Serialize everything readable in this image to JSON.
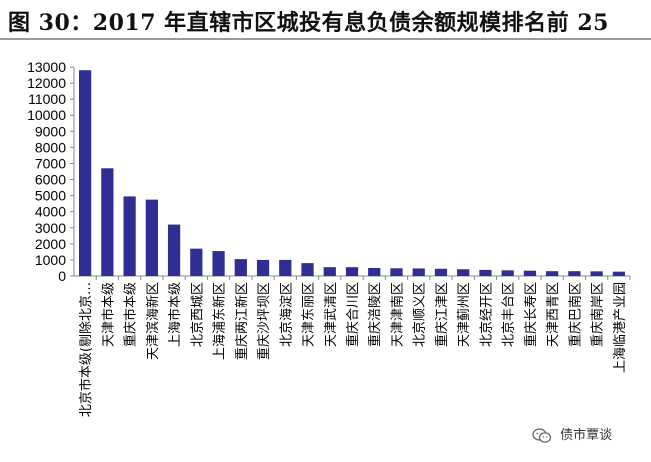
{
  "header": {
    "title": "图 30：2017 年直辖市区城投有息负债余额规模排名前 25"
  },
  "watermark": {
    "text": "债市覃谈",
    "icon": "wechat-icon"
  },
  "colors": {
    "bar": "#2e2e93",
    "axis": "#888888",
    "title_rule": "#9a9a9a"
  },
  "chart_data": {
    "type": "bar",
    "title": "图 30：2017 年直辖市区城投有息负债余额规模排名前 25",
    "xlabel": "",
    "ylabel": "",
    "ylim": [
      0,
      13000
    ],
    "yticks": [
      0,
      1000,
      2000,
      3000,
      4000,
      5000,
      6000,
      7000,
      8000,
      9000,
      10000,
      11000,
      12000,
      13000
    ],
    "grid": false,
    "legend": "none",
    "categories": [
      "北京市本级(剔除北京…",
      "天津市本级",
      "重庆市本级",
      "天津滨海新区",
      "上海市本级",
      "北京西城区",
      "上海浦东新区",
      "重庆两江新区",
      "重庆沙坪坝区",
      "北京海淀区",
      "天津东丽区",
      "天津武清区",
      "重庆合川区",
      "重庆涪陵区",
      "天津津南区",
      "北京顺义区",
      "重庆江津区",
      "天津蓟州区",
      "北京经开区",
      "北京丰台区",
      "重庆长寿区",
      "天津西青区",
      "重庆巴南区",
      "重庆南岸区",
      "上海临港产业园"
    ],
    "values": [
      12800,
      6700,
      4950,
      4750,
      3200,
      1700,
      1550,
      1050,
      1000,
      1000,
      800,
      550,
      550,
      500,
      480,
      470,
      450,
      420,
      380,
      350,
      330,
      300,
      300,
      290,
      270
    ]
  }
}
